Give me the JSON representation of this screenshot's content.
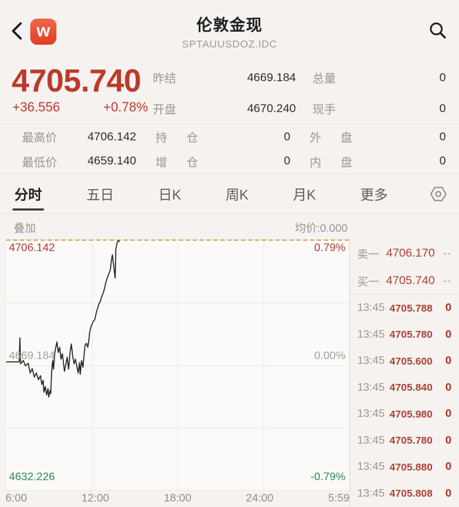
{
  "header": {
    "title": "伦敦金现",
    "subtitle": "SPTAUUSDOZ.IDC",
    "app_badge": "w",
    "back_icon": "chevron-left",
    "search_icon": "magnifier"
  },
  "quote": {
    "last_price": "4705.740",
    "change": "+36.556",
    "change_pct": "+0.78%",
    "fields_top": [
      {
        "label": "昨结",
        "value": "4669.184"
      },
      {
        "label": "总量",
        "value": "0"
      },
      {
        "label": "开盘",
        "value": "4670.240"
      },
      {
        "label": "现手",
        "value": "0"
      }
    ],
    "fields_bottom": [
      {
        "label": "最高价",
        "value": "4706.142"
      },
      {
        "label": "持仓",
        "value": "0"
      },
      {
        "label": "外盘",
        "value": "0"
      },
      {
        "label": "最低价",
        "value": "4659.140"
      },
      {
        "label": "增仓",
        "value": "0"
      },
      {
        "label": "内盘",
        "value": "0"
      }
    ]
  },
  "tabs": {
    "items": [
      {
        "label": "分时",
        "active": true
      },
      {
        "label": "五日",
        "active": false
      },
      {
        "label": "日K",
        "active": false
      },
      {
        "label": "周K",
        "active": false
      },
      {
        "label": "月K",
        "active": false
      },
      {
        "label": "更多",
        "active": false
      }
    ],
    "settings_icon": "hex-nut"
  },
  "chart_toolbar": {
    "overlay_label": "叠加",
    "avg_price_label": "均价:0.000"
  },
  "chart_data": {
    "type": "line",
    "title": "分时 (intraday) price line",
    "ylim": [
      4632.226,
      4706.142
    ],
    "y_labels": {
      "high": "4706.142",
      "high_pct": "0.79%",
      "mid": "4669.184",
      "mid_pct": "0.00%",
      "low": "4632.226",
      "low_pct": "-0.79%"
    },
    "x_ticks": [
      "6:00",
      "12:00",
      "18:00",
      "24:00",
      "5:59"
    ],
    "grid": true,
    "legend_position": "none",
    "line_color": "#222222",
    "dashed_high_line_color": "#dca45c",
    "points": [
      [
        0.0,
        4670.1
      ],
      [
        0.038,
        4670.1
      ],
      [
        0.04,
        4677.2
      ],
      [
        0.042,
        4669.5
      ],
      [
        0.05,
        4670.5
      ],
      [
        0.056,
        4668.9
      ],
      [
        0.064,
        4669.7
      ],
      [
        0.07,
        4666.8
      ],
      [
        0.076,
        4668.1
      ],
      [
        0.082,
        4665.6
      ],
      [
        0.088,
        4666.8
      ],
      [
        0.094,
        4664.8
      ],
      [
        0.1,
        4666.0
      ],
      [
        0.104,
        4663.4
      ],
      [
        0.108,
        4664.6
      ],
      [
        0.11,
        4661.1
      ],
      [
        0.114,
        4662.8
      ],
      [
        0.118,
        4660.3
      ],
      [
        0.122,
        4662.2
      ],
      [
        0.124,
        4659.7
      ],
      [
        0.128,
        4661.6
      ],
      [
        0.13,
        4660.7
      ],
      [
        0.132,
        4665.8
      ],
      [
        0.134,
        4668.9
      ],
      [
        0.136,
        4670.5
      ],
      [
        0.138,
        4667.9
      ],
      [
        0.142,
        4672.9
      ],
      [
        0.144,
        4674.0
      ],
      [
        0.148,
        4676.0
      ],
      [
        0.152,
        4672.9
      ],
      [
        0.156,
        4674.4
      ],
      [
        0.16,
        4670.9
      ],
      [
        0.164,
        4672.5
      ],
      [
        0.17,
        4667.3
      ],
      [
        0.174,
        4669.3
      ],
      [
        0.178,
        4671.5
      ],
      [
        0.182,
        4667.9
      ],
      [
        0.186,
        4672.5
      ],
      [
        0.19,
        4675.4
      ],
      [
        0.194,
        4671.9
      ],
      [
        0.198,
        4669.5
      ],
      [
        0.202,
        4670.9
      ],
      [
        0.206,
        4668.9
      ],
      [
        0.21,
        4666.8
      ],
      [
        0.214,
        4669.9
      ],
      [
        0.216,
        4666.4
      ],
      [
        0.22,
        4670.5
      ],
      [
        0.224,
        4668.5
      ],
      [
        0.228,
        4672.9
      ],
      [
        0.23,
        4675.0
      ],
      [
        0.234,
        4675.6
      ],
      [
        0.238,
        4674.4
      ],
      [
        0.24,
        4675.6
      ],
      [
        0.244,
        4679.1
      ],
      [
        0.248,
        4680.7
      ],
      [
        0.25,
        4681.1
      ],
      [
        0.254,
        4682.1
      ],
      [
        0.258,
        4682.5
      ],
      [
        0.262,
        4684.2
      ],
      [
        0.264,
        4685.2
      ],
      [
        0.268,
        4686.2
      ],
      [
        0.27,
        4687.2
      ],
      [
        0.274,
        4687.8
      ],
      [
        0.278,
        4689.2
      ],
      [
        0.284,
        4690.7
      ],
      [
        0.288,
        4692.3
      ],
      [
        0.29,
        4693.3
      ],
      [
        0.294,
        4694.7
      ],
      [
        0.298,
        4695.8
      ],
      [
        0.302,
        4696.8
      ],
      [
        0.304,
        4697.4
      ],
      [
        0.306,
        4699.4
      ],
      [
        0.308,
        4700.8
      ],
      [
        0.31,
        4701.8
      ],
      [
        0.312,
        4699.8
      ],
      [
        0.314,
        4698.4
      ],
      [
        0.316,
        4696.4
      ],
      [
        0.318,
        4694.9
      ],
      [
        0.32,
        4703.5
      ],
      [
        0.324,
        4705.5
      ],
      [
        0.328,
        4706.1
      ],
      [
        0.33,
        4705.7
      ]
    ]
  },
  "order_book": {
    "rows": [
      {
        "label": "卖一",
        "price": "4706.170",
        "qty": "--"
      },
      {
        "label": "买一",
        "price": "4705.740",
        "qty": "--"
      }
    ]
  },
  "trades": {
    "rows": [
      {
        "time": "13:45",
        "price": "4705.788",
        "qty": "0"
      },
      {
        "time": "13:45",
        "price": "4705.780",
        "qty": "0"
      },
      {
        "time": "13:45",
        "price": "4705.600",
        "qty": "0"
      },
      {
        "time": "13:45",
        "price": "4705.840",
        "qty": "0"
      },
      {
        "time": "13:45",
        "price": "4705.980",
        "qty": "0"
      },
      {
        "time": "13:45",
        "price": "4705.780",
        "qty": "0"
      },
      {
        "time": "13:45",
        "price": "4705.880",
        "qty": "0"
      },
      {
        "time": "13:45",
        "price": "4705.808",
        "qty": "0"
      }
    ]
  },
  "colors": {
    "up_red": "#bc392b",
    "chart_red": "#ad3b33",
    "down_green": "#2f8756",
    "badge_orange": "#e8492c",
    "dashed_line": "#dca45c",
    "page_bg": "#f5f2ef"
  }
}
